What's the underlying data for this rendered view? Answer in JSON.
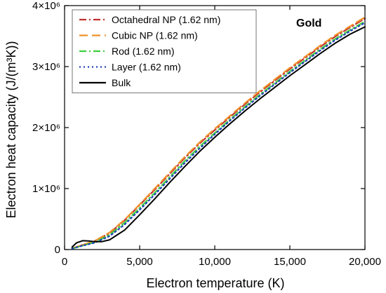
{
  "chart_data": {
    "type": "line",
    "annotation": "Gold",
    "xlabel": "Electron temperature (K)",
    "ylabel": "Electron heat capacity (J/(m³K))",
    "xlim": [
      0,
      20000
    ],
    "ylim": [
      0,
      4000000
    ],
    "x_ticks": [
      {
        "value": 0,
        "label": "0"
      },
      {
        "value": 5000,
        "label": "5,000"
      },
      {
        "value": 10000,
        "label": "10,000"
      },
      {
        "value": 15000,
        "label": "15,000"
      },
      {
        "value": 20000,
        "label": "20,000"
      }
    ],
    "y_ticks": [
      {
        "value": 0,
        "label": "0"
      },
      {
        "value": 1000000,
        "label": "1×10⁶"
      },
      {
        "value": 2000000,
        "label": "2×10⁶"
      },
      {
        "value": 3000000,
        "label": "3×10⁶"
      },
      {
        "value": 4000000,
        "label": "4×10⁶"
      }
    ],
    "legend_position": "top-left",
    "grid": false,
    "series": [
      {
        "name": "Octahedral NP (1.62 nm)",
        "color": "#c0302e",
        "dash": "dashdot",
        "x": [
          500,
          1000,
          2000,
          3000,
          4000,
          5000,
          6000,
          7000,
          8000,
          9000,
          10000,
          11000,
          12000,
          13000,
          14000,
          15000,
          16000,
          17000,
          18000,
          19000,
          20000
        ],
        "y": [
          20000,
          60000,
          140000,
          270000,
          480000,
          730000,
          980000,
          1240000,
          1500000,
          1740000,
          1960000,
          2170000,
          2380000,
          2580000,
          2770000,
          2960000,
          3140000,
          3320000,
          3490000,
          3640000,
          3790000
        ]
      },
      {
        "name": "Cubic NP (1.62 nm)",
        "color": "#f0912b",
        "dash": "dash",
        "x": [
          500,
          1000,
          2000,
          3000,
          4000,
          5000,
          6000,
          7000,
          8000,
          9000,
          10000,
          11000,
          12000,
          13000,
          14000,
          15000,
          16000,
          17000,
          18000,
          19000,
          20000
        ],
        "y": [
          20000,
          60000,
          140000,
          280000,
          490000,
          740000,
          1000000,
          1260000,
          1520000,
          1760000,
          1980000,
          2190000,
          2400000,
          2600000,
          2790000,
          2980000,
          3160000,
          3340000,
          3510000,
          3660000,
          3810000
        ]
      },
      {
        "name": "Rod (1.62 nm)",
        "color": "#3ecf3e",
        "dash": "dashdot",
        "x": [
          500,
          1000,
          2000,
          3000,
          4000,
          5000,
          6000,
          7000,
          8000,
          9000,
          10000,
          11000,
          12000,
          13000,
          14000,
          15000,
          16000,
          17000,
          18000,
          19000,
          20000
        ],
        "y": [
          15000,
          50000,
          120000,
          240000,
          440000,
          680000,
          930000,
          1190000,
          1450000,
          1690000,
          1910000,
          2130000,
          2340000,
          2540000,
          2730000,
          2920000,
          3100000,
          3280000,
          3450000,
          3600000,
          3740000
        ]
      },
      {
        "name": "Layer (1.62 nm)",
        "color": "#2140b8",
        "dash": "dot",
        "x": [
          500,
          1000,
          2000,
          3000,
          4000,
          5000,
          6000,
          7000,
          8000,
          9000,
          10000,
          11000,
          12000,
          13000,
          14000,
          15000,
          16000,
          17000,
          18000,
          19000,
          20000
        ],
        "y": [
          15000,
          50000,
          110000,
          220000,
          410000,
          650000,
          900000,
          1160000,
          1420000,
          1660000,
          1890000,
          2110000,
          2320000,
          2520000,
          2710000,
          2900000,
          3080000,
          3260000,
          3430000,
          3580000,
          3720000
        ]
      },
      {
        "name": "Bulk",
        "color": "#000000",
        "dash": "solid",
        "x": [
          500,
          800,
          1200,
          1600,
          2000,
          2500,
          3000,
          4000,
          5000,
          6000,
          7000,
          8000,
          9000,
          10000,
          11000,
          12000,
          13000,
          14000,
          15000,
          16000,
          17000,
          18000,
          19000,
          20000
        ],
        "y": [
          40000,
          110000,
          145000,
          140000,
          130000,
          130000,
          160000,
          320000,
          570000,
          830000,
          1100000,
          1360000,
          1610000,
          1840000,
          2060000,
          2270000,
          2470000,
          2660000,
          2850000,
          3030000,
          3210000,
          3380000,
          3530000,
          3650000
        ]
      }
    ]
  }
}
